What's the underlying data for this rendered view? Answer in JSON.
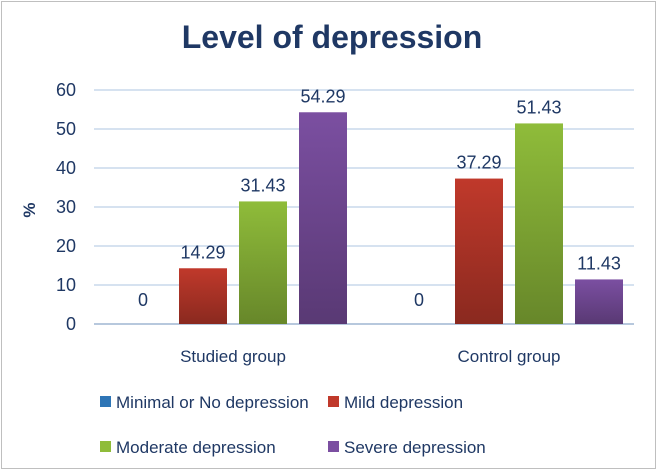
{
  "chart_data": {
    "type": "bar",
    "title": "Level of depression",
    "ylabel": "%",
    "xlabel": "",
    "ylim": [
      0,
      60
    ],
    "yticks": [
      0,
      10,
      20,
      30,
      40,
      50,
      60
    ],
    "grid": true,
    "legend_position": "bottom",
    "categories": [
      "Studied group",
      "Control group"
    ],
    "series": [
      {
        "name": "Minimal or No depression",
        "color": "#2e75b6",
        "values": [
          0,
          0
        ]
      },
      {
        "name": "Mild depression",
        "color": "#c0392b",
        "values": [
          14.29,
          37.29
        ]
      },
      {
        "name": "Moderate depression",
        "color": "#8fbc3a",
        "values": [
          31.43,
          51.43
        ]
      },
      {
        "name": "Severe depression",
        "color": "#7b4fa1",
        "values": [
          54.29,
          11.43
        ]
      }
    ],
    "data_labels": [
      [
        "0",
        "0"
      ],
      [
        "14.29",
        "37.29"
      ],
      [
        "31.43",
        "51.43"
      ],
      [
        "54.29",
        "11.43"
      ]
    ]
  }
}
